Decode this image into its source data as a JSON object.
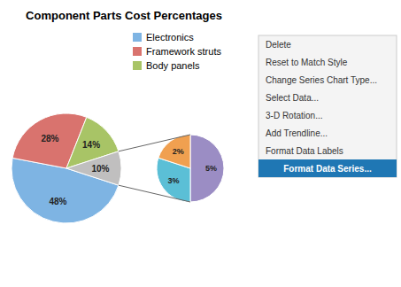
{
  "chart_data": [
    {
      "type": "pie",
      "title": "Component Parts Cost Percentages",
      "categories": [
        "Electronics",
        "Framework struts",
        "Body panels",
        null
      ],
      "values": [
        48,
        28,
        14,
        10
      ],
      "value_labels": [
        "48%",
        "28%",
        "14%",
        "10%"
      ],
      "colors": [
        "#7eb4e3",
        "#d9736e",
        "#a8c466",
        "#c0bfbf"
      ],
      "data_labels": true,
      "legend": "upper right",
      "annotations": [
        "Delete",
        "Reset to Match Style",
        "Change Series Chart Type...",
        "Select Data...",
        "3-D Rotation...",
        "Add Trendline...",
        "Format Data Labels",
        "Format Data Series..."
      ]
    },
    {
      "type": "pie",
      "values": [
        5,
        3,
        2
      ],
      "value_labels": [
        "5%",
        "3%",
        "2%"
      ],
      "colors": [
        "#9b8dc4",
        "#5bbfd6",
        "#f0a050"
      ],
      "data_labels": true
    }
  ]
}
